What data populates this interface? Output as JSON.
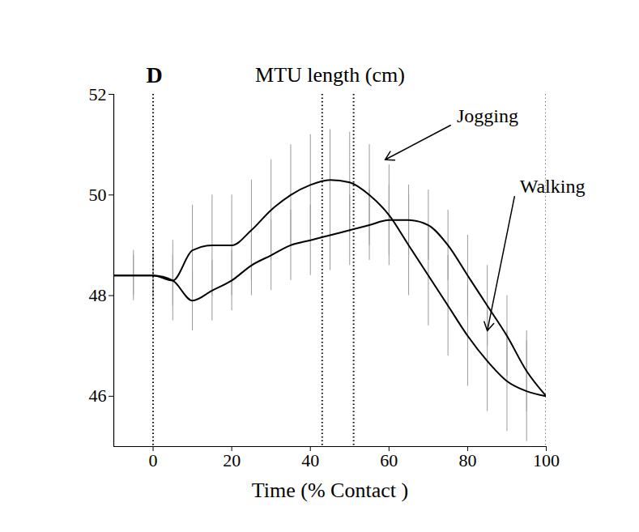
{
  "chart_data": {
    "type": "line",
    "title": "MTU length (cm)",
    "panel": "D",
    "x_label": "Time (% Contact )",
    "x": [
      -10,
      -5,
      0,
      5,
      10,
      15,
      20,
      25,
      30,
      35,
      40,
      45,
      50,
      55,
      60,
      65,
      70,
      75,
      80,
      85,
      90,
      95,
      100
    ],
    "series": [
      {
        "name": "Jogging",
        "color": "#000000",
        "line_style": "solid",
        "values": [
          48.4,
          48.4,
          48.4,
          48.3,
          48.9,
          49.0,
          49.0,
          49.3,
          49.7,
          50.0,
          50.2,
          50.3,
          50.25,
          50.0,
          49.6,
          49.0,
          48.4,
          47.8,
          47.2,
          46.7,
          46.3,
          46.1,
          46.0
        ],
        "errors": [
          0.5,
          0.5,
          0.6,
          0.8,
          0.9,
          1.0,
          1.0,
          1.0,
          1.0,
          1.0,
          1.0,
          1.0,
          1.0,
          1.0,
          1.0,
          1.0,
          1.0,
          1.0,
          1.0,
          1.0,
          1.0,
          1.0,
          0.9
        ],
        "label_x": 76,
        "label_y": 51.4,
        "arrow_x": 59,
        "arrow_y": 50.7
      },
      {
        "name": "Walking",
        "color": "#000000",
        "line_style": "solid",
        "values": [
          48.4,
          48.4,
          48.4,
          48.3,
          47.9,
          48.1,
          48.3,
          48.6,
          48.8,
          49.0,
          49.1,
          49.2,
          49.3,
          49.4,
          49.5,
          49.5,
          49.4,
          49.0,
          48.4,
          47.8,
          47.2,
          46.5,
          46.0
        ],
        "errors": [
          0.4,
          0.4,
          0.4,
          0.5,
          0.6,
          0.6,
          0.6,
          0.6,
          0.7,
          0.7,
          0.7,
          0.7,
          0.7,
          0.7,
          0.7,
          0.7,
          0.7,
          0.7,
          0.8,
          0.8,
          0.8,
          0.8,
          0.7
        ],
        "label_x": 92,
        "label_y": 50.0,
        "arrow_x": 85,
        "arrow_y": 47.3
      }
    ],
    "xlim": [
      -10,
      100
    ],
    "ylim": [
      45,
      52
    ],
    "xticks": [
      0,
      20,
      40,
      60,
      80,
      100
    ],
    "yticks": [
      46,
      48,
      50,
      52
    ],
    "vlines": [
      0,
      43,
      51,
      100
    ]
  }
}
